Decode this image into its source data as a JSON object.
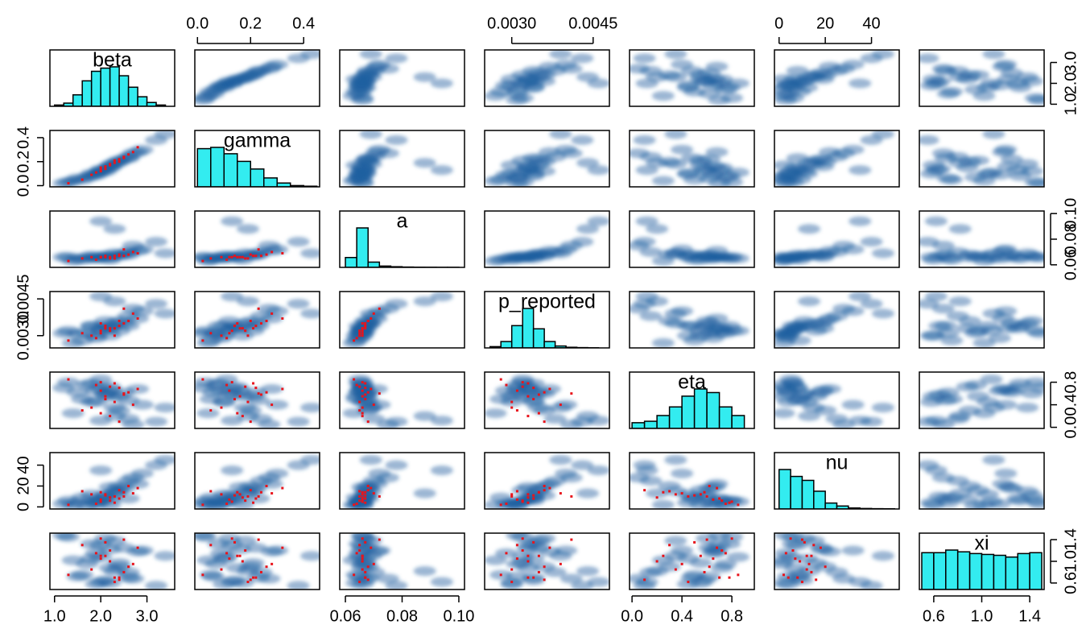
{
  "chart_data": {
    "type": "pairs",
    "variables": [
      {
        "name": "beta",
        "lim": [
          0.9,
          3.6
        ],
        "ticks": [
          {
            "value": 1,
            "label": "1.0"
          },
          {
            "value": 2,
            "label": "2.0"
          },
          {
            "value": 3,
            "label": "3.0"
          }
        ],
        "bins": [
          1.0,
          1.2,
          1.4,
          1.6,
          1.8,
          2.0,
          2.2,
          2.4,
          2.6,
          2.8,
          3.0,
          3.2,
          3.4
        ],
        "counts": [
          2,
          5,
          18,
          40,
          55,
          60,
          62,
          48,
          30,
          15,
          6,
          2
        ],
        "samples": [
          1.5,
          1.8,
          2.0,
          2.2,
          2.4,
          1.3,
          2.6,
          1.9,
          2.1,
          2.9,
          1.7,
          2.3,
          3.2,
          2.0,
          1.6,
          2.5,
          2.2,
          1.4,
          2.7,
          2.1,
          1.9,
          2.8,
          2.3,
          1.8,
          2.4,
          3.4,
          2.0,
          1.2,
          2.6,
          2.2
        ],
        "highlight": [
          2.1,
          2.4,
          1.6,
          2.6,
          2.0,
          2.3,
          1.9,
          2.5,
          2.2,
          2.8,
          1.3,
          2.1,
          2.4,
          2.0,
          2.7,
          2.2,
          1.8,
          2.5,
          2.3,
          2.0
        ]
      },
      {
        "name": "gamma",
        "lim": [
          -0.01,
          0.46
        ],
        "ticks": [
          {
            "value": 0,
            "label": "0.0"
          },
          {
            "value": 0.2,
            "label": "0.2"
          },
          {
            "value": 0.4,
            "label": "0.4"
          }
        ],
        "bins": [
          0,
          0.05,
          0.1,
          0.15,
          0.2,
          0.25,
          0.3,
          0.35,
          0.4,
          0.45
        ],
        "counts": [
          60,
          62,
          52,
          40,
          28,
          14,
          6,
          2,
          1
        ],
        "samples": [
          0.06,
          0.1,
          0.13,
          0.17,
          0.2,
          0.03,
          0.24,
          0.09,
          0.14,
          0.3,
          0.07,
          0.18,
          0.38,
          0.11,
          0.05,
          0.22,
          0.15,
          0.04,
          0.27,
          0.12,
          0.1,
          0.28,
          0.19,
          0.08,
          0.21,
          0.43,
          0.13,
          0.02,
          0.23,
          0.16
        ],
        "highlight": [
          0.16,
          0.22,
          0.05,
          0.26,
          0.13,
          0.19,
          0.11,
          0.24,
          0.17,
          0.32,
          0.02,
          0.14,
          0.2,
          0.12,
          0.28,
          0.18,
          0.09,
          0.23,
          0.21,
          0.15
        ]
      },
      {
        "name": "a",
        "lim": [
          0.058,
          0.102
        ],
        "ticks": [
          {
            "value": 0.06,
            "label": "0.06"
          },
          {
            "value": 0.08,
            "label": "0.08"
          },
          {
            "value": 0.1,
            "label": "0.10"
          }
        ],
        "bins": [
          0.06,
          0.064,
          0.068,
          0.072,
          0.076,
          0.08,
          0.084,
          0.088,
          0.092,
          0.096,
          0.1
        ],
        "counts": [
          15,
          60,
          8,
          2,
          1,
          0.5,
          0.3,
          0.2,
          0.1,
          0.1
        ],
        "samples": [
          0.065,
          0.067,
          0.066,
          0.064,
          0.068,
          0.066,
          0.07,
          0.065,
          0.067,
          0.072,
          0.066,
          0.069,
          0.078,
          0.065,
          0.064,
          0.068,
          0.066,
          0.063,
          0.075,
          0.067,
          0.066,
          0.071,
          0.088,
          0.065,
          0.067,
          0.069,
          0.094,
          0.066,
          0.068,
          0.066
        ],
        "highlight": [
          0.066,
          0.067,
          0.065,
          0.068,
          0.066,
          0.065,
          0.064,
          0.067,
          0.066,
          0.069,
          0.063,
          0.067,
          0.068,
          0.066,
          0.07,
          0.065,
          0.066,
          0.072,
          0.067,
          0.066
        ]
      },
      {
        "name": "p_reported",
        "lim": [
          0.0025,
          0.0048
        ],
        "ticks": [
          {
            "value": 0.003,
            "label": "0.0030"
          },
          {
            "value": 0.0045,
            "label": "0.0045"
          }
        ],
        "bins": [
          0.0026,
          0.0028,
          0.003,
          0.0032,
          0.0034,
          0.0036,
          0.0038,
          0.004,
          0.0042,
          0.0044,
          0.0046
        ],
        "counts": [
          2,
          10,
          35,
          62,
          30,
          10,
          3,
          1,
          0.5,
          0.2
        ],
        "samples": [
          0.0031,
          0.0034,
          0.0033,
          0.003,
          0.0036,
          0.0032,
          0.0038,
          0.0029,
          0.0034,
          0.004,
          0.0031,
          0.0035,
          0.0043,
          0.0032,
          0.0028,
          0.0035,
          0.0033,
          0.0027,
          0.0041,
          0.0036,
          0.003,
          0.0037,
          0.0044,
          0.0034,
          0.0032,
          0.0039,
          0.0046,
          0.0031,
          0.0034,
          0.0033
        ],
        "highlight": [
          0.0033,
          0.0034,
          0.0031,
          0.0036,
          0.0032,
          0.003,
          0.0029,
          0.0035,
          0.0033,
          0.0037,
          0.0028,
          0.0034,
          0.0036,
          0.0031,
          0.0039,
          0.0032,
          0.003,
          0.0041,
          0.0033,
          0.0035
        ]
      },
      {
        "name": "eta",
        "lim": [
          -0.02,
          0.98
        ],
        "ticks": [
          {
            "value": 0,
            "label": "0.0"
          },
          {
            "value": 0.4,
            "label": "0.4"
          },
          {
            "value": 0.8,
            "label": "0.8"
          }
        ],
        "bins": [
          0,
          0.1,
          0.2,
          0.3,
          0.4,
          0.5,
          0.6,
          0.7,
          0.8,
          0.9
        ],
        "counts": [
          8,
          10,
          18,
          30,
          45,
          55,
          50,
          30,
          18
        ],
        "samples": [
          0.62,
          0.45,
          0.7,
          0.55,
          0.3,
          0.8,
          0.15,
          0.65,
          0.58,
          0.4,
          0.75,
          0.35,
          0.1,
          0.85,
          0.5,
          0.62,
          0.72,
          0.25,
          0.05,
          0.6,
          0.45,
          0.68,
          0.2,
          0.78,
          0.55,
          0.35,
          0.12,
          0.7,
          0.48,
          0.66
        ],
        "highlight": [
          0.55,
          0.7,
          0.3,
          0.62,
          0.8,
          0.45,
          0.75,
          0.58,
          0.2,
          0.68,
          0.85,
          0.5,
          0.1,
          0.65,
          0.4,
          0.72,
          0.35,
          0.6,
          0.78,
          0.25
        ]
      },
      {
        "name": "nu",
        "lim": [
          -2,
          52
        ],
        "ticks": [
          0,
          20,
          40
        ],
        "bins": [
          0,
          5,
          10,
          15,
          20,
          25,
          30,
          35,
          40,
          45,
          50
        ],
        "counts": [
          40,
          33,
          29,
          18,
          6,
          3,
          1,
          0.5,
          0.3,
          0.2
        ],
        "samples": [
          4,
          12,
          8,
          2,
          20,
          6,
          25,
          3,
          10,
          32,
          1,
          15,
          40,
          5,
          9,
          18,
          7,
          2,
          28,
          11,
          4,
          22,
          13,
          6,
          16,
          45,
          35,
          3,
          8,
          19
        ],
        "highlight": [
          12,
          8,
          15,
          20,
          5,
          10,
          3,
          14,
          9,
          18,
          2,
          11,
          16,
          7,
          13,
          6,
          12,
          10,
          4,
          14
        ]
      },
      {
        "name": "xi",
        "lim": [
          0.48,
          1.52
        ],
        "ticks": [
          {
            "value": 0.6,
            "label": "0.6"
          },
          {
            "value": 1,
            "label": "1.0"
          },
          {
            "value": 1.4,
            "label": "1.4"
          }
        ],
        "bins": [
          0.5,
          0.6,
          0.7,
          0.8,
          0.9,
          1.0,
          1.1,
          1.2,
          1.3,
          1.4,
          1.5
        ],
        "counts": [
          42,
          42,
          45,
          43,
          41,
          40,
          39,
          37,
          41,
          42
        ],
        "samples": [
          0.72,
          1.05,
          1.3,
          0.6,
          0.9,
          1.45,
          0.8,
          1.15,
          0.65,
          1.2,
          0.95,
          1.38,
          0.55,
          1.08,
          0.75,
          1.25,
          0.88,
          1.02,
          0.68,
          1.42,
          0.58,
          1.18,
          0.82,
          1.32,
          0.97,
          1.1,
          0.62,
          1.48,
          0.7,
          1.22
        ],
        "highlight": [
          1.1,
          0.7,
          1.3,
          0.9,
          1.42,
          0.62,
          1.15,
          0.8,
          1.0,
          1.25,
          0.75,
          1.35,
          0.66,
          1.05,
          0.95,
          1.2,
          0.85,
          1.4,
          0.7,
          1.1
        ]
      }
    ],
    "hist_color": "#33ecf0",
    "sample_color": "#1f5fa0",
    "highlight_color": "#e8141c"
  }
}
